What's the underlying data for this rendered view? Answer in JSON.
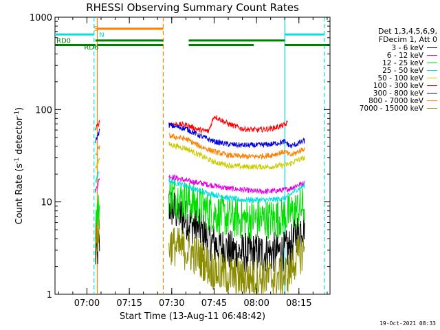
{
  "chart_data": {
    "type": "line",
    "title": "RHESSI Observing Summary Count Rates",
    "xlabel": "Start Time (13-Aug-11 06:48:42)",
    "ylabel_main": "Count Rate (s",
    "ylabel_sup1": "-1",
    "ylabel_mid": " detector",
    "ylabel_sup2": "-1",
    "ylabel_end": ")",
    "yscale": "log",
    "ylim": [
      1,
      1000
    ],
    "xlim": [
      "06:48:42",
      "08:26:00"
    ],
    "x_ticks": [
      "07:00",
      "07:15",
      "07:30",
      "07:45",
      "08:00",
      "08:15"
    ],
    "y_ticks": [
      "1",
      "10",
      "100",
      "1000"
    ],
    "footer": "19-Oct-2021 08:33",
    "legend_header": [
      "Det 1,3,4,5,6,9,",
      "FDecim 1, Att 0"
    ],
    "series": [
      {
        "name": "3 - 6 keV",
        "color": "#000000",
        "x": [
          "07:03",
          "07:04:30",
          "07:29",
          "07:35",
          "07:40",
          "07:45",
          "07:50",
          "07:55",
          "08:00",
          "08:05",
          "08:10",
          "08:12",
          "08:14",
          "08:17"
        ],
        "y": [
          2.5,
          3.5,
          9.0,
          6.5,
          5.0,
          3.5,
          3.0,
          2.8,
          2.8,
          2.8,
          2.9,
          3.2,
          4.5,
          6.0
        ]
      },
      {
        "name": "6 - 12 keV",
        "color": "#e000e0",
        "x": [
          "07:03",
          "07:04:30",
          "07:29",
          "07:35",
          "07:40",
          "07:45",
          "07:50",
          "07:55",
          "08:00",
          "08:05",
          "08:10",
          "08:12",
          "08:14",
          "08:17"
        ],
        "y": [
          13,
          18,
          19,
          17,
          16,
          15,
          14,
          13.5,
          13,
          13,
          13.5,
          14,
          15,
          16
        ]
      },
      {
        "name": "12 - 25 keV",
        "color": "#00dd00",
        "x": [
          "07:03",
          "07:04:30",
          "07:29",
          "07:35",
          "07:40",
          "07:45",
          "07:50",
          "07:55",
          "08:00",
          "08:05",
          "08:10",
          "08:12",
          "08:14",
          "08:17"
        ],
        "y": [
          6.5,
          8.5,
          12,
          10.5,
          9.0,
          7.5,
          6.8,
          6.5,
          6.5,
          6.5,
          7.0,
          7.5,
          8.0,
          9.0
        ]
      },
      {
        "name": "25 - 50 keV",
        "color": "#00e0e0",
        "x": [
          "07:03",
          "07:04:30",
          "07:29",
          "07:35",
          "07:40",
          "07:45",
          "07:50",
          "07:55",
          "08:00",
          "08:05",
          "08:10",
          "08:12",
          "08:14",
          "08:17"
        ],
        "y": [
          16,
          22,
          17,
          15,
          13,
          12,
          11,
          10.5,
          10.5,
          10.5,
          11,
          12,
          13.5,
          15
        ]
      },
      {
        "name": "50 - 100 keV",
        "color": "#cccc00",
        "x": [
          "07:03",
          "07:04:30",
          "07:29",
          "07:35",
          "07:40",
          "07:45",
          "07:50",
          "07:55",
          "08:00",
          "08:05",
          "08:10",
          "08:12",
          "08:14",
          "08:17"
        ],
        "y": [
          23,
          30,
          42,
          38,
          32,
          27,
          25,
          24,
          24,
          24,
          25,
          26,
          28,
          30
        ]
      },
      {
        "name": "100 - 300 keV",
        "color": "#ff0000",
        "x": [
          "07:03",
          "07:04:30",
          "07:29",
          "07:35",
          "07:40",
          "07:43",
          "07:45",
          "07:50",
          "07:55",
          "08:00",
          "08:05",
          "08:10",
          "08:11"
        ],
        "y": [
          60,
          75,
          70,
          68,
          60,
          58,
          85,
          70,
          62,
          60,
          62,
          68,
          72
        ]
      },
      {
        "name": "300 - 800 keV",
        "color": "#0000dd",
        "x": [
          "07:03",
          "07:04:30",
          "07:29",
          "07:35",
          "07:40",
          "07:45",
          "07:50",
          "07:55",
          "08:00",
          "08:05",
          "08:10",
          "08:12",
          "08:14",
          "08:17"
        ],
        "y": [
          45,
          60,
          68,
          62,
          52,
          45,
          42,
          41,
          41,
          42,
          45,
          40,
          42,
          46
        ]
      },
      {
        "name": "800 - 7000 keV",
        "color": "#ff8000",
        "x": [
          "07:03",
          "07:04:30",
          "07:29",
          "07:35",
          "07:40",
          "07:45",
          "07:50",
          "07:55",
          "08:00",
          "08:05",
          "08:10",
          "08:12",
          "08:14",
          "08:17"
        ],
        "y": [
          32,
          40,
          52,
          48,
          40,
          35,
          32,
          31,
          31,
          32,
          35,
          32,
          34,
          38
        ]
      },
      {
        "name": "7000 - 15000 keV",
        "color": "#8b8b00",
        "x": [
          "07:03",
          "07:04:30",
          "07:29",
          "07:35",
          "07:40",
          "07:45",
          "07:50",
          "07:55",
          "08:00",
          "08:05",
          "08:10",
          "08:12",
          "08:14",
          "08:17"
        ],
        "y": [
          3.5,
          5.0,
          3.5,
          3.0,
          2.5,
          1.8,
          1.6,
          1.5,
          1.5,
          1.5,
          1.6,
          1.8,
          2.5,
          3.0
        ]
      }
    ],
    "flags": [
      {
        "name": "S",
        "color": "#ff8000",
        "y": 750,
        "spans": [
          [
            "07:03:40",
            "07:27:00"
          ]
        ]
      },
      {
        "name": "N",
        "color": "#00e0e0",
        "y": 650,
        "spans": [
          [
            "06:48:42",
            "07:02:30"
          ],
          [
            "08:10:00",
            "08:24:00"
          ]
        ]
      },
      {
        "name": "RD0",
        "color": "#008000",
        "y": 500,
        "spans": [
          [
            "06:48:42",
            "07:03:00"
          ],
          [
            "07:03:40",
            "07:27:00"
          ],
          [
            "07:36:00",
            "07:59:00"
          ],
          [
            "08:10:00",
            "08:26:00"
          ]
        ]
      },
      {
        "name": "RD6",
        "color": "#008000",
        "y": 560,
        "spans": [
          [
            "07:03:00",
            "07:27:00"
          ],
          [
            "07:36:00",
            "08:10:00"
          ]
        ]
      }
    ],
    "vertical_markers": [
      {
        "x": "07:02:30",
        "color": "#00e0e0",
        "style": "dashed"
      },
      {
        "x": "07:03:40",
        "color": "#ff8000",
        "style": "solid"
      },
      {
        "x": "07:27:00",
        "color": "#ff8000",
        "style": "dashed"
      },
      {
        "x": "08:10:00",
        "color": "#00e0e0",
        "style": "solid"
      },
      {
        "x": "08:24:00",
        "color": "#00e0e0",
        "style": "dashed"
      }
    ]
  }
}
